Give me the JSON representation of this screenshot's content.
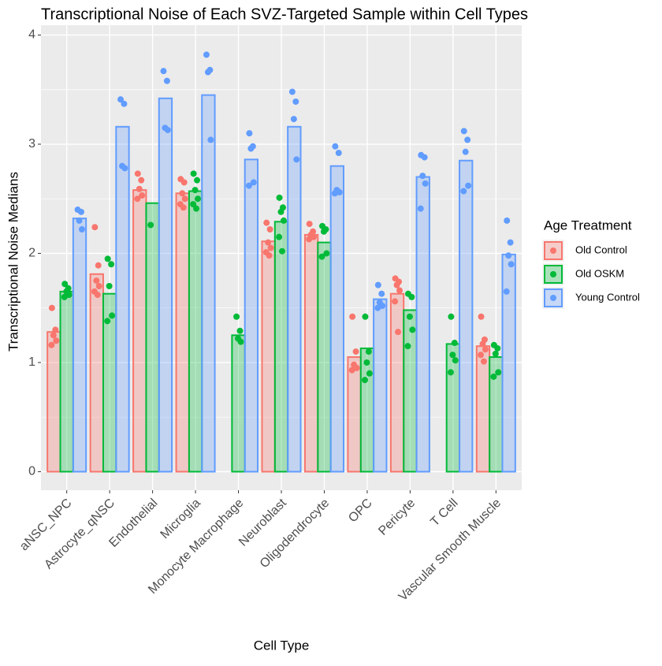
{
  "chart_data": {
    "type": "bar",
    "title": "Transcriptional Noise of Each SVZ-Targeted Sample within Cell Types",
    "x_label": "Cell Type",
    "y_label": "Transcriptional Noise Medians",
    "legend_title": "Age Treatment",
    "categories": [
      "aNSC_NPC",
      "Astrocyte_qNSC",
      "Endothelial",
      "Microglia",
      "Monocyte Macrophage",
      "Neuroblast",
      "Oligodendrocyte",
      "OPC",
      "Pericyte",
      "T Cell",
      "Vascular Smooth Muscle"
    ],
    "ylim": [
      -0.17,
      4.09
    ],
    "yticks": [
      0,
      1,
      2,
      3,
      4
    ],
    "grid": true,
    "series": [
      {
        "name": "Old Control",
        "color": "#f8766d",
        "values": [
          1.28,
          1.81,
          2.58,
          2.55,
          null,
          2.11,
          2.17,
          1.05,
          1.63,
          null,
          1.15
        ],
        "points": [
          [
            1.5,
            1.3,
            1.25,
            1.2,
            1.16
          ],
          [
            2.24,
            1.89,
            1.75,
            1.7,
            1.65,
            1.62
          ],
          [
            2.73,
            2.67,
            2.59,
            2.53,
            2.5
          ],
          [
            2.68,
            2.65,
            2.55,
            2.5,
            2.45,
            2.42
          ],
          [],
          [
            2.28,
            2.22,
            2.1,
            2.05,
            2.01,
            1.98
          ],
          [
            2.27,
            2.2,
            2.17,
            2.15,
            2.13
          ],
          [
            1.42,
            1.1,
            0.98,
            0.95,
            0.93
          ],
          [
            1.77,
            1.74,
            1.71,
            1.66,
            1.56,
            1.28
          ],
          [],
          [
            1.42,
            1.21,
            1.17,
            1.12,
            1.07,
            1.01
          ]
        ]
      },
      {
        "name": "Old OSKM",
        "color": "#00ba38",
        "values": [
          1.65,
          1.63,
          2.46,
          2.57,
          1.25,
          2.29,
          2.1,
          1.13,
          1.48,
          1.17,
          1.05
        ],
        "points": [
          [
            1.72,
            1.68,
            1.65,
            1.62,
            1.6
          ],
          [
            1.95,
            1.9,
            1.7,
            1.43,
            1.38
          ],
          [
            2.26
          ],
          [
            2.73,
            2.67,
            2.58,
            2.5,
            2.45,
            2.41
          ],
          [
            1.42,
            1.29,
            1.22,
            1.19
          ],
          [
            2.51,
            2.42,
            2.38,
            2.3,
            2.15,
            2.02
          ],
          [
            2.25,
            2.22,
            2.2,
            2.0,
            1.97
          ],
          [
            1.42,
            1.1,
            1.0,
            0.9,
            0.84
          ],
          [
            1.63,
            1.6,
            1.42,
            1.3,
            1.15
          ],
          [
            1.42,
            1.18,
            1.07,
            1.02,
            0.91
          ],
          [
            1.16,
            1.13,
            1.08,
            0.91,
            0.87
          ]
        ]
      },
      {
        "name": "Young Control",
        "color": "#619cff",
        "values": [
          2.32,
          3.16,
          3.42,
          3.45,
          2.86,
          3.16,
          2.8,
          1.58,
          2.7,
          2.85,
          1.99
        ],
        "points": [
          [
            2.4,
            2.38,
            2.3,
            2.22
          ],
          [
            3.41,
            3.37,
            2.8,
            2.78
          ],
          [
            3.67,
            3.58,
            3.15,
            3.13
          ],
          [
            3.82,
            3.68,
            3.66,
            3.04
          ],
          [
            3.1,
            2.98,
            2.96,
            2.65,
            2.62
          ],
          [
            3.48,
            3.39,
            3.23,
            2.86
          ],
          [
            2.98,
            2.92,
            2.58,
            2.56,
            2.55
          ],
          [
            1.71,
            1.63,
            1.55,
            1.52,
            1.5
          ],
          [
            2.9,
            2.88,
            2.71,
            2.64,
            2.41
          ],
          [
            3.12,
            3.04,
            2.93,
            2.62,
            2.57
          ],
          [
            2.3,
            2.1,
            1.98,
            1.9,
            1.65
          ]
        ]
      }
    ]
  }
}
